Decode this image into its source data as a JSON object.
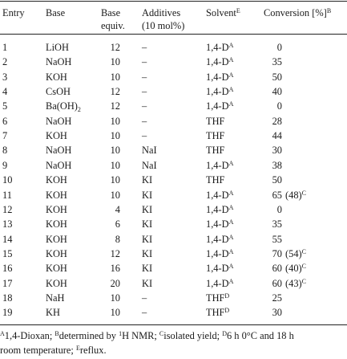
{
  "table": {
    "headers": {
      "entry": "Entry",
      "base": "Base",
      "equiv_line1": "Base",
      "equiv_line2": "equiv.",
      "additives_line1": "Additives",
      "additives_line2": "(10 mol%)",
      "solvent": "Solvent",
      "solvent_sup": "E",
      "conversion": "Conversion [%]",
      "conversion_sup": "B"
    },
    "rows": [
      {
        "entry": "1",
        "base": "LiOH",
        "base_sub": "",
        "equiv": "12",
        "additive": "–",
        "solvent": "1,4-D",
        "solvent_sup": "A",
        "conversion": "0",
        "yield": "",
        "yield_sup": ""
      },
      {
        "entry": "2",
        "base": "NaOH",
        "base_sub": "",
        "equiv": "10",
        "additive": "–",
        "solvent": "1,4-D",
        "solvent_sup": "A",
        "conversion": "35",
        "yield": "",
        "yield_sup": ""
      },
      {
        "entry": "3",
        "base": "KOH",
        "base_sub": "",
        "equiv": "10",
        "additive": "–",
        "solvent": "1,4-D",
        "solvent_sup": "A",
        "conversion": "50",
        "yield": "",
        "yield_sup": ""
      },
      {
        "entry": "4",
        "base": "CsOH",
        "base_sub": "",
        "equiv": "12",
        "additive": "–",
        "solvent": "1,4-D",
        "solvent_sup": "A",
        "conversion": "40",
        "yield": "",
        "yield_sup": ""
      },
      {
        "entry": "5",
        "base": "Ba(OH)",
        "base_sub": "2",
        "equiv": "12",
        "additive": "–",
        "solvent": "1,4-D",
        "solvent_sup": "A",
        "conversion": "0",
        "yield": "",
        "yield_sup": ""
      },
      {
        "entry": "6",
        "base": "NaOH",
        "base_sub": "",
        "equiv": "10",
        "additive": "–",
        "solvent": "THF",
        "solvent_sup": "",
        "conversion": "28",
        "yield": "",
        "yield_sup": ""
      },
      {
        "entry": "7",
        "base": "KOH",
        "base_sub": "",
        "equiv": "10",
        "additive": "–",
        "solvent": "THF",
        "solvent_sup": "",
        "conversion": "44",
        "yield": "",
        "yield_sup": ""
      },
      {
        "entry": "8",
        "base": "NaOH",
        "base_sub": "",
        "equiv": "10",
        "additive": "NaI",
        "solvent": "THF",
        "solvent_sup": "",
        "conversion": "30",
        "yield": "",
        "yield_sup": ""
      },
      {
        "entry": "9",
        "base": "NaOH",
        "base_sub": "",
        "equiv": "10",
        "additive": "NaI",
        "solvent": "1,4-D",
        "solvent_sup": "A",
        "conversion": "38",
        "yield": "",
        "yield_sup": ""
      },
      {
        "entry": "10",
        "base": "KOH",
        "base_sub": "",
        "equiv": "10",
        "additive": "KI",
        "solvent": "THF",
        "solvent_sup": "",
        "conversion": "50",
        "yield": "",
        "yield_sup": ""
      },
      {
        "entry": "11",
        "base": "KOH",
        "base_sub": "",
        "equiv": "10",
        "additive": "KI",
        "solvent": "1,4-D",
        "solvent_sup": "A",
        "conversion": "65",
        "yield": "(48)",
        "yield_sup": "C"
      },
      {
        "entry": "12",
        "base": "KOH",
        "base_sub": "",
        "equiv": "4",
        "additive": "KI",
        "solvent": "1,4-D",
        "solvent_sup": "A",
        "conversion": "0",
        "yield": "",
        "yield_sup": ""
      },
      {
        "entry": "13",
        "base": "KOH",
        "base_sub": "",
        "equiv": "6",
        "additive": "KI",
        "solvent": "1,4-D",
        "solvent_sup": "A",
        "conversion": "35",
        "yield": "",
        "yield_sup": ""
      },
      {
        "entry": "14",
        "base": "KOH",
        "base_sub": "",
        "equiv": "8",
        "additive": "KI",
        "solvent": "1,4-D",
        "solvent_sup": "A",
        "conversion": "55",
        "yield": "",
        "yield_sup": ""
      },
      {
        "entry": "15",
        "base": "KOH",
        "base_sub": "",
        "equiv": "12",
        "additive": "KI",
        "solvent": "1,4-D",
        "solvent_sup": "A",
        "conversion": "70",
        "yield": "(54)",
        "yield_sup": "C"
      },
      {
        "entry": "16",
        "base": "KOH",
        "base_sub": "",
        "equiv": "16",
        "additive": "KI",
        "solvent": "1,4-D",
        "solvent_sup": "A",
        "conversion": "60",
        "yield": "(40)",
        "yield_sup": "C"
      },
      {
        "entry": "17",
        "base": "KOH",
        "base_sub": "",
        "equiv": "20",
        "additive": "KI",
        "solvent": "1,4-D",
        "solvent_sup": "A",
        "conversion": "60",
        "yield": "(43)",
        "yield_sup": "C"
      },
      {
        "entry": "18",
        "base": "NaH",
        "base_sub": "",
        "equiv": "10",
        "additive": "–",
        "solvent": "THF",
        "solvent_sup": "D",
        "conversion": "25",
        "yield": "",
        "yield_sup": ""
      },
      {
        "entry": "19",
        "base": "KH",
        "base_sub": "",
        "equiv": "10",
        "additive": "–",
        "solvent": "THF",
        "solvent_sup": "D",
        "conversion": "30",
        "yield": "",
        "yield_sup": ""
      }
    ]
  },
  "footnotes": {
    "a_mark": "A",
    "a_text": "1,4-Dioxan; ",
    "b_mark": "B",
    "b_text_pre": "determined by ",
    "b_nmr_mark": "1",
    "b_text_post": "H NMR; ",
    "c_mark": "C",
    "c_text": "isolated yield; ",
    "d_mark": "D",
    "d_text": "6 h 0°C and 18 h",
    "line2": "room temperature; ",
    "e_mark": "E",
    "e_text": "reflux."
  }
}
